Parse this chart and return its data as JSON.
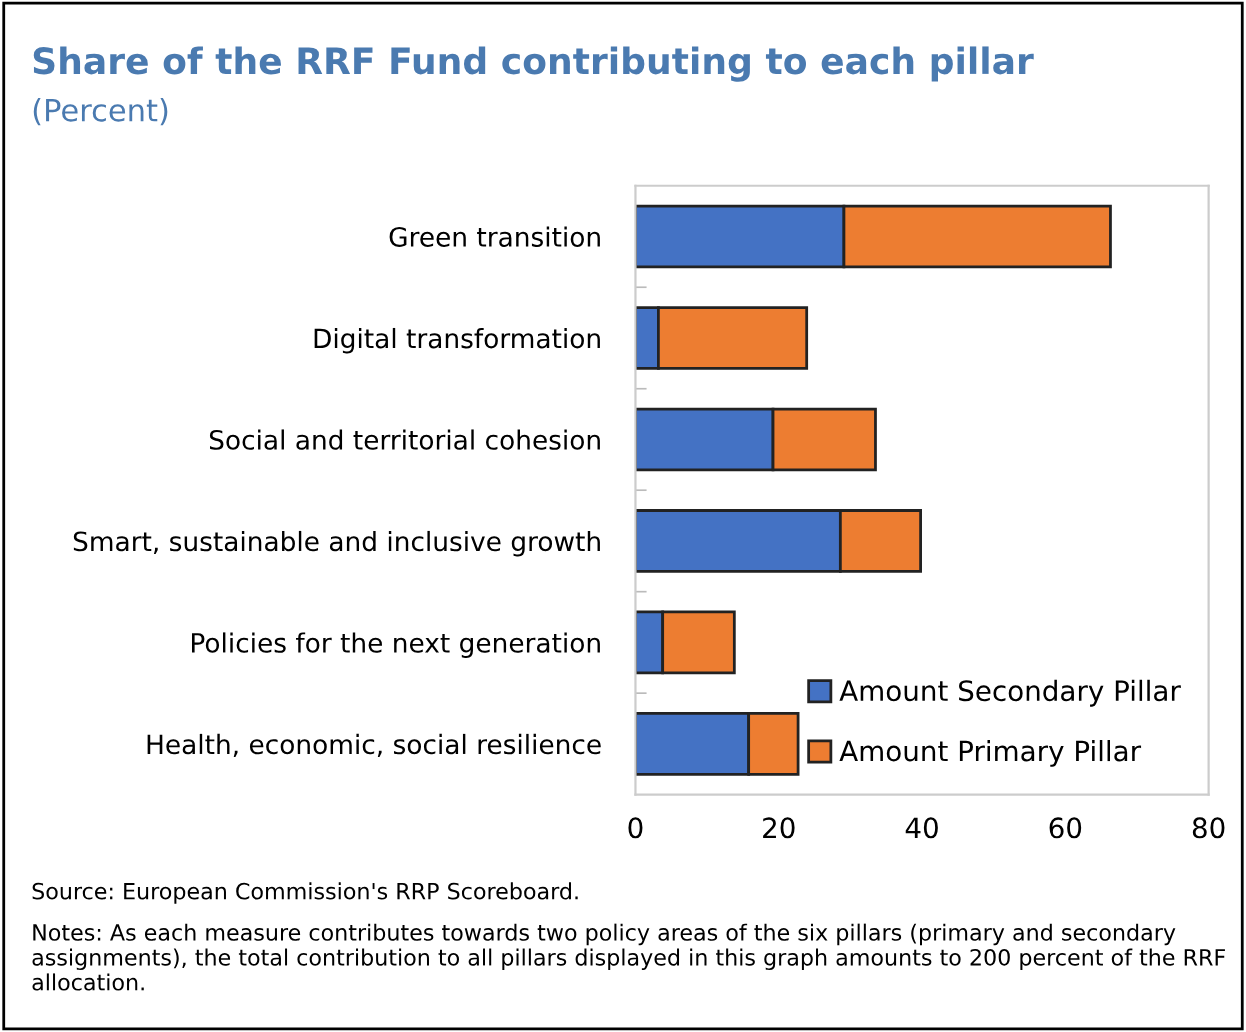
{
  "chart_data": {
    "type": "bar",
    "orientation": "horizontal",
    "stacked": true,
    "title": "Share of the RRF Fund contributing to each pillar",
    "subtitle": "(Percent)",
    "categories": [
      "Green transition",
      "Digital transformation",
      "Social and territorial cohesion",
      "Smart, sustainable and inclusive growth",
      "Policies for the next generation",
      "Health, economic, social resilience"
    ],
    "series": [
      {
        "name": "Amount Secondary Pillar",
        "color": "#4472c4",
        "values": [
          29.1,
          3.2,
          19.2,
          28.6,
          3.8,
          15.8
        ]
      },
      {
        "name": "Amount Primary Pillar",
        "color": "#ed7d31",
        "values": [
          37.2,
          20.7,
          14.3,
          11.2,
          10.0,
          6.9
        ]
      }
    ],
    "xlim": [
      0,
      80
    ],
    "xticks": [
      0,
      20,
      40,
      60,
      80
    ],
    "grid": false,
    "legend": "bottom right",
    "annotations": [
      "Source: European Commission's RRP Scoreboard.",
      "Notes: As each measure contributes towards two policy areas of the six pillars (primary and secondary assignments), the total contribution to all pillars displayed in this graph amounts to 200 percent of the RRF allocation."
    ]
  }
}
